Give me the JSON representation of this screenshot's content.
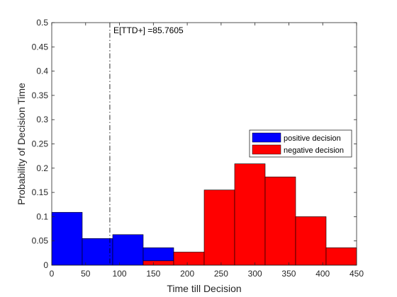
{
  "chart_data": {
    "type": "bar",
    "xlabel": "Time till Decision",
    "ylabel": "Probability of Decision Time",
    "xlim": [
      0,
      450
    ],
    "ylim": [
      0,
      0.5
    ],
    "xticks": [
      "0",
      "50",
      "100",
      "150",
      "200",
      "250",
      "300",
      "350",
      "400",
      "450"
    ],
    "yticks": [
      "0",
      "0.05",
      "0.1",
      "0.15",
      "0.2",
      "0.25",
      "0.3",
      "0.35",
      "0.4",
      "0.45",
      "0.5"
    ],
    "grid": false,
    "legend_position": "right",
    "series": [
      {
        "name": "positive decision",
        "color": "#0000ff",
        "bins": [
          {
            "x0": 0,
            "x1": 45,
            "value": 0.109
          },
          {
            "x0": 45,
            "x1": 90,
            "value": 0.055
          },
          {
            "x0": 90,
            "x1": 135,
            "value": 0.063
          },
          {
            "x0": 135,
            "x1": 180,
            "value": 0.036
          }
        ]
      },
      {
        "name": "negative decision",
        "color": "#ff0000",
        "bins": [
          {
            "x0": 135,
            "x1": 180,
            "value": 0.009
          },
          {
            "x0": 180,
            "x1": 225,
            "value": 0.027
          },
          {
            "x0": 225,
            "x1": 270,
            "value": 0.155
          },
          {
            "x0": 270,
            "x1": 315,
            "value": 0.209
          },
          {
            "x0": 315,
            "x1": 360,
            "value": 0.182
          },
          {
            "x0": 360,
            "x1": 405,
            "value": 0.1
          },
          {
            "x0": 405,
            "x1": 450,
            "value": 0.036
          }
        ]
      }
    ],
    "annotations": [
      {
        "x": 85.7605,
        "text": "E[TTD+] =85.7605",
        "style": "dash-dot"
      }
    ]
  }
}
